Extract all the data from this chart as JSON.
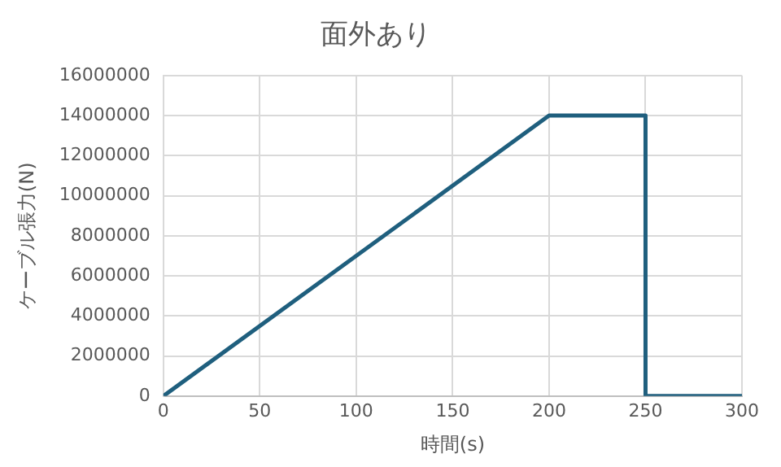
{
  "chart_data": {
    "type": "line",
    "title": "面外あり",
    "xlabel": "時間(s)",
    "ylabel": "ケーブル張力(N)",
    "x": [
      0,
      200,
      250,
      250,
      300
    ],
    "series": [
      {
        "color": "#1f5f7e",
        "values": [
          0,
          14000000,
          14000000,
          0,
          0
        ]
      }
    ],
    "xlim": [
      0,
      300
    ],
    "xticks": [
      0,
      50,
      100,
      150,
      200,
      250,
      300
    ],
    "ylim": [
      0,
      16000000
    ],
    "yticks": [
      0,
      2000000,
      4000000,
      6000000,
      8000000,
      10000000,
      12000000,
      14000000,
      16000000
    ],
    "grid": true,
    "legend": false,
    "marker": "none",
    "line_style": "solid"
  }
}
